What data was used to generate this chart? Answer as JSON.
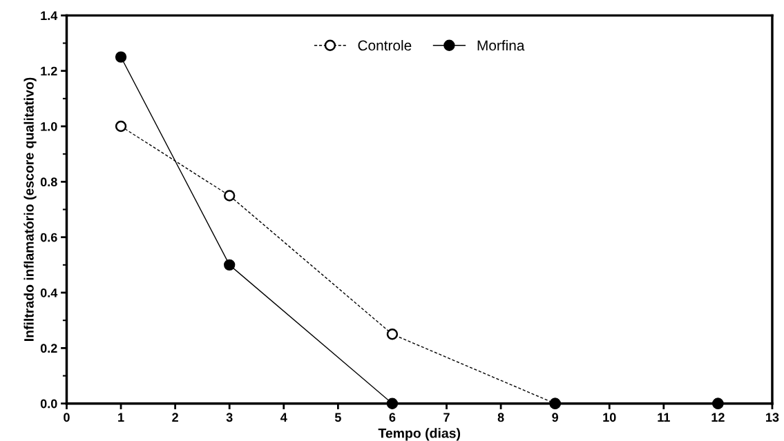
{
  "chart_data": {
    "type": "line",
    "xlabel": "Tempo (dias)",
    "ylabel": "Infiltrado inflamatório (escore qualitativo)",
    "xlim": [
      0,
      13
    ],
    "xticks": [
      0,
      1,
      2,
      3,
      4,
      5,
      6,
      7,
      8,
      9,
      10,
      11,
      12,
      13
    ],
    "ylim": [
      0,
      1.4
    ],
    "yticks": [
      {
        "value": 0,
        "label": "0.0"
      },
      {
        "value": 0.2,
        "label": "0.2"
      },
      {
        "value": 0.4,
        "label": "0.4"
      },
      {
        "value": 0.6,
        "label": "0.6"
      },
      {
        "value": 0.8,
        "label": "0.8"
      },
      {
        "value": 1.0,
        "label": "1.0"
      },
      {
        "value": 1.2,
        "label": "1.2"
      },
      {
        "value": 1.4,
        "label": "1.4"
      }
    ],
    "marker": "circle",
    "legend": "top",
    "grid": false,
    "series": [
      {
        "name": "Controle",
        "color": "#000000",
        "line_style": "dashed",
        "x": [
          1,
          3,
          6,
          9,
          12
        ],
        "values": [
          1.0,
          0.75,
          0.25,
          0,
          0
        ]
      },
      {
        "name": "Morfina",
        "color": "#000000",
        "line_style": "solid",
        "x": [
          1,
          3,
          6,
          9,
          12
        ],
        "values": [
          1.25,
          0.5,
          0,
          0,
          0
        ]
      }
    ]
  }
}
